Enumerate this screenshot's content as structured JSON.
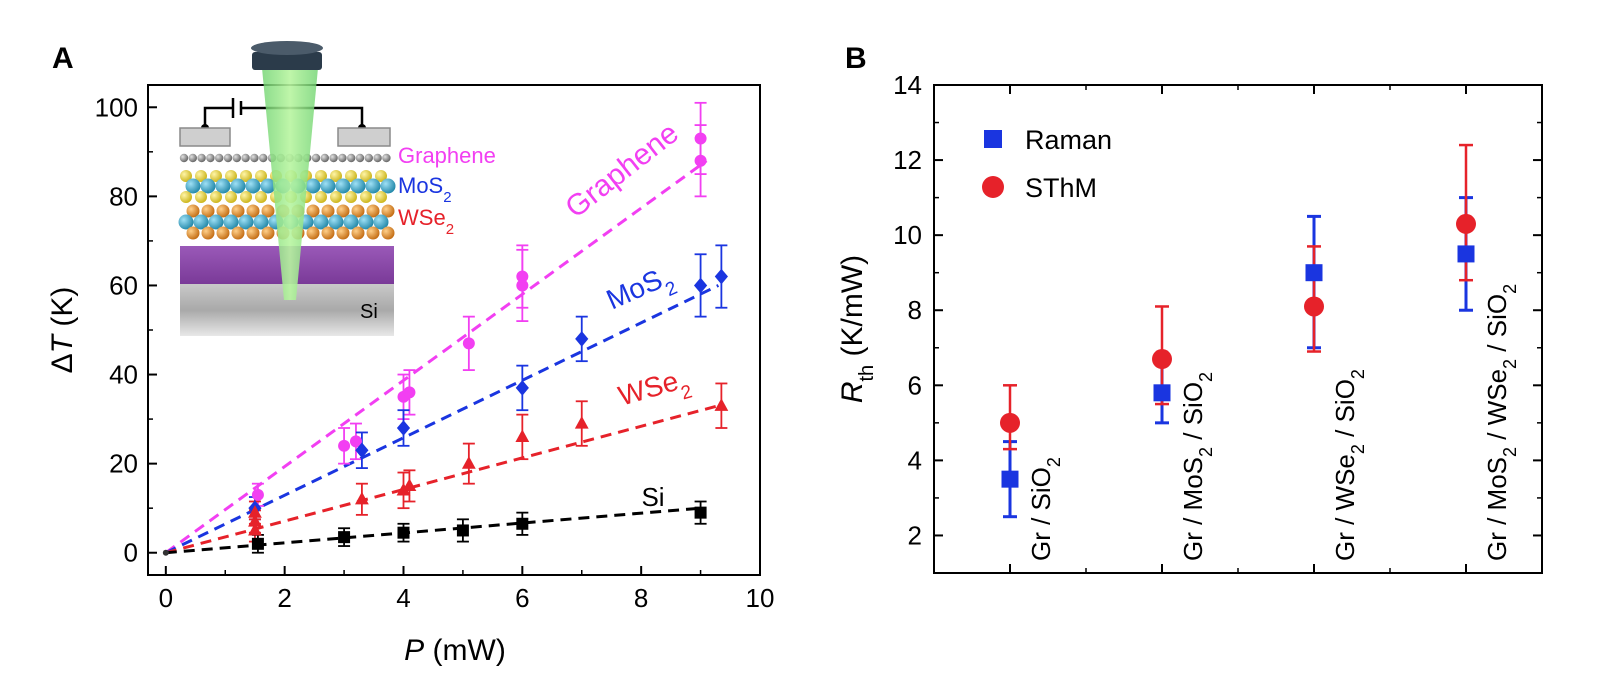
{
  "chart_data": [
    {
      "panel": "A",
      "type": "scatter",
      "xlabel_var": "P",
      "xlabel_unit": "(mW)",
      "ylabel_delta": "Δ",
      "ylabel_var": "T",
      "ylabel_unit": "(K)",
      "xlim": [
        -0.3,
        10
      ],
      "ylim": [
        -5,
        105
      ],
      "xticks": [
        0,
        2,
        4,
        6,
        8,
        10
      ],
      "yticks": [
        0,
        20,
        40,
        60,
        80,
        100
      ],
      "series": [
        {
          "name": "Graphene",
          "color": "#f23ff2",
          "marker": "circle",
          "fit_end": [
            9.1,
            88
          ],
          "points": [
            [
              1.55,
              13,
              2.5
            ],
            [
              3.0,
              24,
              4
            ],
            [
              3.2,
              25,
              4
            ],
            [
              4.0,
              35,
              5
            ],
            [
              4.1,
              36,
              5
            ],
            [
              5.1,
              47,
              6
            ],
            [
              6.0,
              60,
              8
            ],
            [
              6.0,
              62,
              7
            ],
            [
              9.0,
              88,
              8
            ],
            [
              9.0,
              93,
              8
            ]
          ]
        },
        {
          "name": "MoS",
          "sub": "2",
          "color": "#1a35e0",
          "marker": "diamond",
          "fit_end": [
            9.3,
            60
          ],
          "points": [
            [
              1.5,
              10,
              2.5
            ],
            [
              3.3,
              23,
              4
            ],
            [
              4.0,
              28,
              4
            ],
            [
              6.0,
              37,
              5
            ],
            [
              7.0,
              48,
              5
            ],
            [
              9.0,
              60,
              7
            ],
            [
              9.35,
              62,
              7
            ]
          ]
        },
        {
          "name": "WSe",
          "sub": "2",
          "color": "#e6222a",
          "marker": "triangle",
          "fit_end": [
            9.3,
            33
          ],
          "points": [
            [
              1.5,
              5,
              2.5
            ],
            [
              1.5,
              7,
              2.5
            ],
            [
              1.5,
              9,
              2.5
            ],
            [
              3.3,
              12,
              3.5
            ],
            [
              4.0,
              14,
              4
            ],
            [
              4.1,
              15,
              3.5
            ],
            [
              5.1,
              20,
              4.5
            ],
            [
              6.0,
              26,
              5
            ],
            [
              7.0,
              29,
              5
            ],
            [
              9.35,
              33,
              5
            ]
          ]
        },
        {
          "name": "Si",
          "color": "#000000",
          "marker": "square",
          "fit_end": [
            9.0,
            10
          ],
          "points": [
            [
              1.55,
              2,
              2
            ],
            [
              3.0,
              3.5,
              2
            ],
            [
              4.0,
              4.5,
              2
            ],
            [
              5.0,
              5,
              2.5
            ],
            [
              6.0,
              6.5,
              2.5
            ],
            [
              9.0,
              9,
              2.5
            ]
          ]
        }
      ],
      "inset_labels": [
        {
          "text": "Graphene",
          "color": "#f23ff2"
        },
        {
          "text": "MoS",
          "sub": "2",
          "color": "#1a35e0"
        },
        {
          "text": "WSe",
          "sub": "2",
          "color": "#e6222a"
        },
        {
          "text": "Si",
          "color": "#000000"
        }
      ]
    },
    {
      "panel": "B",
      "type": "scatter",
      "ylabel_var": "R",
      "ylabel_sub": "th",
      "ylabel_unit": "(K/mW)",
      "ylim": [
        1,
        14
      ],
      "yticks": [
        2,
        4,
        6,
        8,
        10,
        12,
        14
      ],
      "categories": [
        {
          "parts": [
            [
              "Gr / SiO",
              ""
            ],
            [
              "2",
              "sub"
            ]
          ]
        },
        {
          "parts": [
            [
              "Gr / MoS",
              ""
            ],
            [
              "2",
              "sub"
            ],
            [
              " / SiO",
              ""
            ],
            [
              "2",
              "sub"
            ]
          ]
        },
        {
          "parts": [
            [
              "Gr / WSe",
              ""
            ],
            [
              "2",
              "sub"
            ],
            [
              " / SiO",
              ""
            ],
            [
              "2",
              "sub"
            ]
          ]
        },
        {
          "parts": [
            [
              "Gr / MoS",
              ""
            ],
            [
              "2",
              "sub"
            ],
            [
              " / WSe",
              ""
            ],
            [
              "2",
              "sub"
            ],
            [
              " / SiO",
              ""
            ],
            [
              "2",
              "sub"
            ]
          ]
        }
      ],
      "series": [
        {
          "name": "Raman",
          "color": "#1a35e0",
          "marker": "square",
          "values": [
            3.5,
            5.8,
            9.0,
            9.5
          ],
          "err_lo": [
            2.5,
            5.0,
            7.0,
            8.0
          ],
          "err_hi": [
            4.5,
            6.7,
            10.5,
            11.0
          ]
        },
        {
          "name": "SThM",
          "color": "#e6222a",
          "marker": "circle",
          "values": [
            5.0,
            6.7,
            8.1,
            10.3
          ],
          "err_lo": [
            4.3,
            5.5,
            6.9,
            8.8
          ],
          "err_hi": [
            6.0,
            8.1,
            9.7,
            12.4
          ]
        }
      ]
    }
  ]
}
